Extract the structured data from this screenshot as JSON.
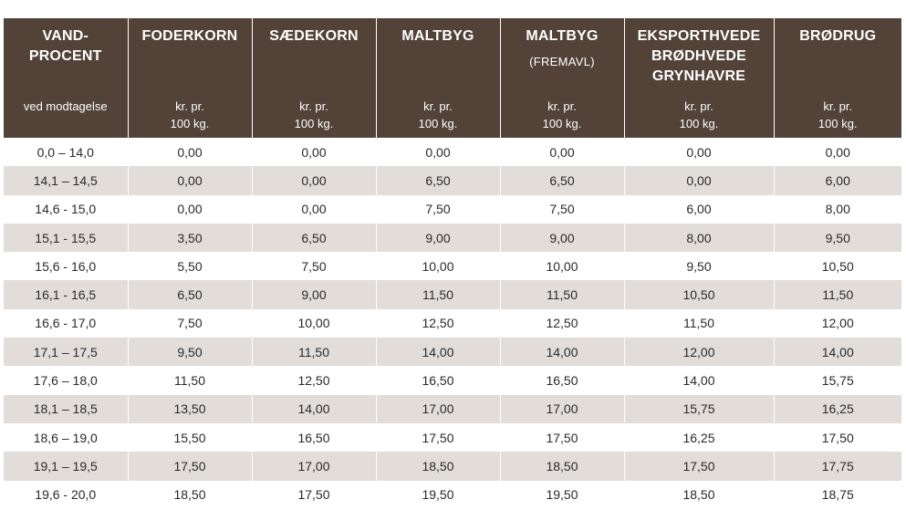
{
  "headers": [
    {
      "title": [
        "VAND-",
        "PROCENT"
      ],
      "subtitle": "",
      "unit": [
        "ved modtagelse"
      ]
    },
    {
      "title": [
        "FODERKORN"
      ],
      "subtitle": "",
      "unit": [
        "kr. pr.",
        "100 kg."
      ]
    },
    {
      "title": [
        "SÆDEKORN"
      ],
      "subtitle": "",
      "unit": [
        "kr. pr.",
        "100 kg."
      ]
    },
    {
      "title": [
        "MALTBYG"
      ],
      "subtitle": "",
      "unit": [
        "kr. pr.",
        "100 kg."
      ]
    },
    {
      "title": [
        "MALTBYG"
      ],
      "subtitle": "(FREMAVL)",
      "unit": [
        "kr. pr.",
        "100 kg."
      ]
    },
    {
      "title": [
        "EKSPORTHVEDE",
        "BRØDHVEDE",
        "GRYNHAVRE"
      ],
      "subtitle": "",
      "unit": [
        "kr. pr.",
        "100 kg."
      ]
    },
    {
      "title": [
        "BRØDRUG"
      ],
      "subtitle": "",
      "unit": [
        "kr. pr.",
        "100 kg."
      ]
    }
  ],
  "rows": [
    [
      "0,0 – 14,0",
      "0,00",
      "0,00",
      "0,00",
      "0,00",
      "0,00",
      "0,00"
    ],
    [
      "14,1 – 14,5",
      "0,00",
      "0,00",
      "6,50",
      "6,50",
      "0,00",
      "6,00"
    ],
    [
      "14,6 - 15,0",
      "0,00",
      "0,00",
      "7,50",
      "7,50",
      "6,00",
      "8,00"
    ],
    [
      "15,1 - 15,5",
      "3,50",
      "6,50",
      "9,00",
      "9,00",
      "8,00",
      "9,50"
    ],
    [
      "15,6 - 16,0",
      "5,50",
      "7,50",
      "10,00",
      "10,00",
      "9,50",
      "10,50"
    ],
    [
      "16,1 - 16,5",
      "6,50",
      "9,00",
      "11,50",
      "11,50",
      "10,50",
      "11,50"
    ],
    [
      "16,6 - 17,0",
      "7,50",
      "10,00",
      "12,50",
      "12,50",
      "11,50",
      "12,00"
    ],
    [
      "17,1 – 17,5",
      "9,50",
      "11,50",
      "14,00",
      "14,00",
      "12,00",
      "14,00"
    ],
    [
      "17,6 – 18,0",
      "11,50",
      "12,50",
      "16,50",
      "16,50",
      "14,00",
      "15,75"
    ],
    [
      "18,1 – 18,5",
      "13,50",
      "14,00",
      "17,00",
      "17,00",
      "15,75",
      "16,25"
    ],
    [
      "18,6 – 19,0",
      "15,50",
      "16,50",
      "17,50",
      "17,50",
      "16,25",
      "17,50"
    ],
    [
      "19,1 – 19,5",
      "17,50",
      "17,00",
      "18,50",
      "18,50",
      "17,50",
      "17,75"
    ],
    [
      "19,6 - 20,0",
      "18,50",
      "17,50",
      "19,50",
      "19,50",
      "18,50",
      "18,75"
    ]
  ]
}
